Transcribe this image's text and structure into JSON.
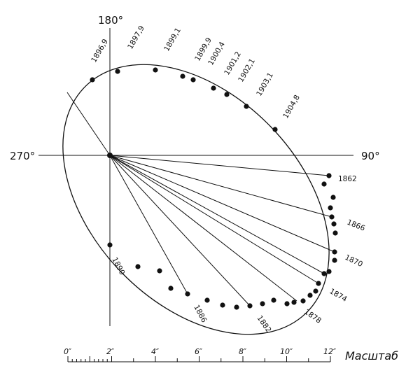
{
  "axes": {
    "top": "180°",
    "left": "270°",
    "right": "90°"
  },
  "top_labels": [
    "1896,9",
    "1897,9",
    "1899,1",
    "1899,9",
    "1900,4",
    "1901,2",
    "1902,1",
    "1903,1",
    "1904,8"
  ],
  "right_labels": [
    "1862",
    "1866",
    "1870",
    "1874",
    "1878",
    "1882",
    "1886",
    "1890"
  ],
  "scale": {
    "title": "Масштаб",
    "ticks": [
      "0″",
      "2″",
      "4″",
      "6″",
      "8″",
      "10″",
      "12″"
    ]
  }
}
